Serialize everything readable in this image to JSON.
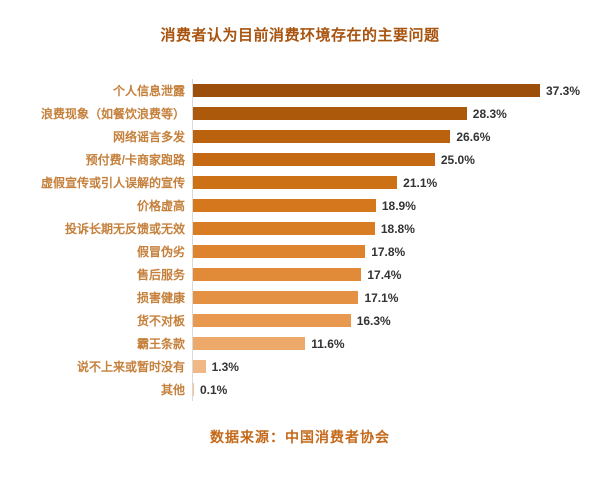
{
  "chart": {
    "title": "消费者认为目前消费环境存在的主要问题",
    "source": "数据来源：中国消费者协会"
  },
  "chart_data": {
    "type": "bar",
    "orientation": "horizontal",
    "title": "消费者认为目前消费环境存在的主要问题",
    "source": "数据来源：中国消费者协会",
    "xlim": [
      0,
      40
    ],
    "grid": false,
    "legend": "none",
    "categories": [
      "个人信息泄露",
      "浪费现象（如餐饮浪费等）",
      "网络谣言多发",
      "预付费/卡商家跑路",
      "虚假宣传或引人误解的宣传",
      "价格虚高",
      "投诉长期无反馈或无效",
      "假冒伪劣",
      "售后服务",
      "损害健康",
      "货不对板",
      "霸王条款",
      "说不上来或暂时没有",
      "其他"
    ],
    "values": [
      37.3,
      28.3,
      26.6,
      25.0,
      21.1,
      18.9,
      18.8,
      17.8,
      17.4,
      17.1,
      16.3,
      11.6,
      1.3,
      0.1
    ],
    "value_labels": [
      "37.3%",
      "28.3%",
      "26.6%",
      "25.0%",
      "21.1%",
      "18.9%",
      "18.8%",
      "17.8%",
      "17.4%",
      "17.1%",
      "16.3%",
      "11.6%",
      "1.3%",
      "0.1%"
    ],
    "bar_colors": [
      "#9B4F0A",
      "#AC590C",
      "#BA620E",
      "#C56A12",
      "#CD7117",
      "#D4771D",
      "#D97D25",
      "#DE842E",
      "#E18A38",
      "#E49143",
      "#E8994F",
      "#ECA96A",
      "#F0B885",
      "#F2C093"
    ],
    "title_color": "#A8530E",
    "label_color": "#C5803C",
    "value_color": "#333333",
    "source_color": "#C4691A"
  }
}
